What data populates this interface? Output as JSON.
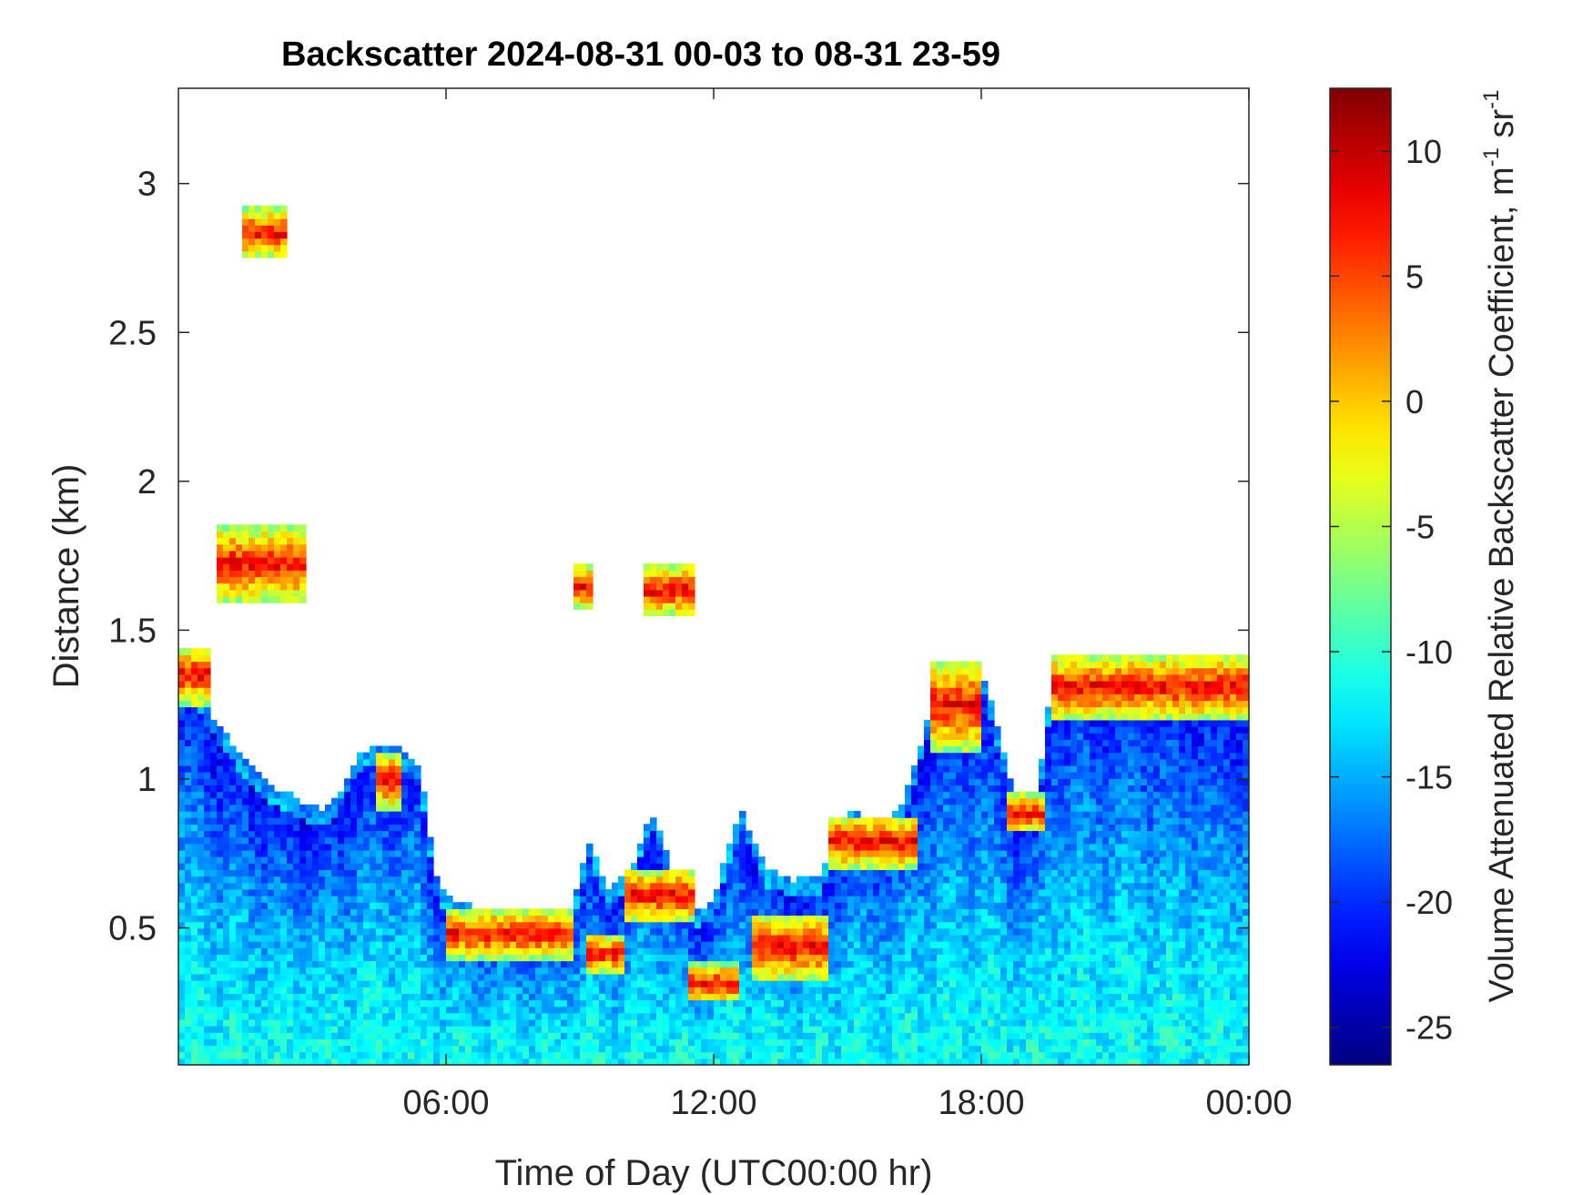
{
  "chart_data": {
    "type": "heatmap",
    "title": "Backscatter 2024-08-31 00-03 to 08-31 23-59",
    "xlabel": "Time of Day (UTC00:00 hr)",
    "ylabel": "Distance (km)",
    "xlim": [
      0,
      24
    ],
    "ylim": [
      0.04,
      3.32
    ],
    "x_ticks": [
      {
        "value": 6,
        "label": "06:00"
      },
      {
        "value": 12,
        "label": "12:00"
      },
      {
        "value": 18,
        "label": "18:00"
      },
      {
        "value": 24,
        "label": "00:00"
      }
    ],
    "y_ticks": [
      {
        "value": 0.5,
        "label": "0.5"
      },
      {
        "value": 1,
        "label": "1"
      },
      {
        "value": 1.5,
        "label": "1.5"
      },
      {
        "value": 2,
        "label": "2"
      },
      {
        "value": 2.5,
        "label": "2.5"
      },
      {
        "value": 3,
        "label": "3"
      }
    ],
    "colorbar": {
      "colormap": "jet",
      "clim": [
        -26.5,
        12.5
      ],
      "label_main": "Volume Attenuated Relative Backscatter Coefficient, m",
      "label_exp1": "-1",
      "label_mid": " sr",
      "label_exp2": "-1",
      "ticks": [
        {
          "value": 10,
          "label": "10"
        },
        {
          "value": 5,
          "label": "5"
        },
        {
          "value": 0,
          "label": "0"
        },
        {
          "value": -5,
          "label": "-5"
        },
        {
          "value": -10,
          "label": "-10"
        },
        {
          "value": -15,
          "label": "-15"
        },
        {
          "value": -20,
          "label": "-20"
        },
        {
          "value": -25,
          "label": "-25"
        }
      ]
    },
    "grid": false,
    "features": {
      "layer_top_km": [
        [
          0.0,
          1.42
        ],
        [
          0.4,
          1.32
        ],
        [
          0.8,
          1.2
        ],
        [
          1.2,
          1.12
        ],
        [
          1.6,
          1.05
        ],
        [
          2.0,
          0.98
        ],
        [
          2.4,
          0.96
        ],
        [
          2.8,
          0.92
        ],
        [
          3.2,
          0.9
        ],
        [
          3.6,
          0.95
        ],
        [
          4.0,
          1.08
        ],
        [
          4.5,
          1.12
        ],
        [
          5.0,
          1.1
        ],
        [
          5.4,
          1.05
        ],
        [
          5.8,
          0.65
        ],
        [
          6.2,
          0.58
        ],
        [
          7.0,
          0.57
        ],
        [
          8.0,
          0.54
        ],
        [
          8.8,
          0.55
        ],
        [
          9.2,
          0.8
        ],
        [
          9.6,
          0.62
        ],
        [
          10.2,
          0.72
        ],
        [
          10.6,
          0.9
        ],
        [
          11.0,
          0.72
        ],
        [
          11.6,
          0.55
        ],
        [
          12.0,
          0.6
        ],
        [
          12.6,
          0.9
        ],
        [
          13.2,
          0.7
        ],
        [
          13.8,
          0.66
        ],
        [
          14.4,
          0.68
        ],
        [
          15.0,
          0.9
        ],
        [
          15.6,
          0.85
        ],
        [
          16.2,
          0.9
        ],
        [
          16.8,
          1.2
        ],
        [
          17.2,
          1.25
        ],
        [
          17.6,
          1.3
        ],
        [
          18.0,
          1.38
        ],
        [
          18.4,
          1.15
        ],
        [
          18.8,
          0.92
        ],
        [
          19.2,
          0.95
        ],
        [
          19.4,
          1.1
        ],
        [
          19.6,
          1.38
        ],
        [
          20.2,
          1.4
        ],
        [
          20.8,
          1.35
        ],
        [
          21.4,
          1.42
        ],
        [
          22.0,
          1.36
        ],
        [
          22.6,
          1.35
        ],
        [
          23.2,
          1.3
        ],
        [
          24.0,
          1.28
        ]
      ],
      "strong_echo_segments": [
        {
          "t0": 0.0,
          "t1": 0.7,
          "z0": 1.25,
          "z1": 1.45
        },
        {
          "t0": 0.8,
          "t1": 2.9,
          "z0": 1.6,
          "z1": 1.85
        },
        {
          "t0": 1.5,
          "t1": 2.4,
          "z0": 2.75,
          "z1": 2.92
        },
        {
          "t0": 4.4,
          "t1": 5.0,
          "z0": 0.9,
          "z1": 1.1
        },
        {
          "t0": 6.0,
          "t1": 8.8,
          "z0": 0.4,
          "z1": 0.56
        },
        {
          "t0": 9.1,
          "t1": 10.0,
          "z0": 0.35,
          "z1": 0.48
        },
        {
          "t0": 10.0,
          "t1": 11.6,
          "z0": 0.52,
          "z1": 0.7
        },
        {
          "t0": 11.4,
          "t1": 12.6,
          "z0": 0.25,
          "z1": 0.38
        },
        {
          "t0": 12.8,
          "t1": 14.6,
          "z0": 0.32,
          "z1": 0.55
        },
        {
          "t0": 14.6,
          "t1": 16.6,
          "z0": 0.7,
          "z1": 0.88
        },
        {
          "t0": 16.8,
          "t1": 18.0,
          "z0": 1.1,
          "z1": 1.4
        },
        {
          "t0": 18.6,
          "t1": 19.4,
          "z0": 0.82,
          "z1": 0.95
        },
        {
          "t0": 19.6,
          "t1": 24.0,
          "z0": 1.2,
          "z1": 1.42
        },
        {
          "t0": 8.9,
          "t1": 9.3,
          "z0": 1.58,
          "z1": 1.72
        },
        {
          "t0": 10.4,
          "t1": 11.6,
          "z0": 1.55,
          "z1": 1.72
        }
      ]
    }
  }
}
